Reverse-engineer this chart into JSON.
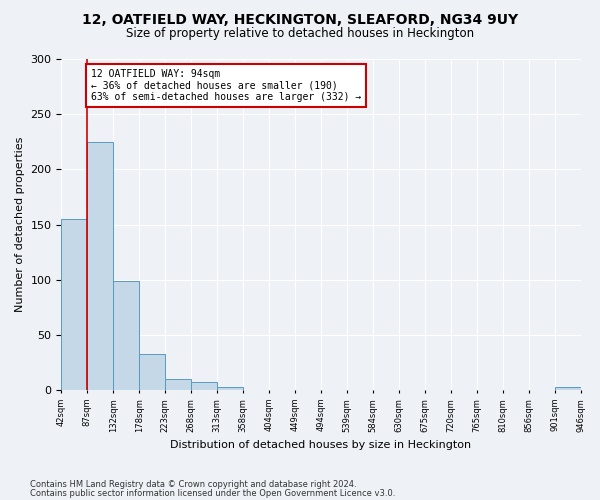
{
  "title": "12, OATFIELD WAY, HECKINGTON, SLEAFORD, NG34 9UY",
  "subtitle": "Size of property relative to detached houses in Heckington",
  "xlabel": "Distribution of detached houses by size in Heckington",
  "ylabel": "Number of detached properties",
  "bar_values": [
    155,
    225,
    99,
    33,
    10,
    7,
    3,
    0,
    0,
    0,
    0,
    0,
    0,
    0,
    0,
    0,
    0,
    0,
    0,
    3
  ],
  "bin_labels": [
    "42sqm",
    "87sqm",
    "132sqm",
    "178sqm",
    "223sqm",
    "268sqm",
    "313sqm",
    "358sqm",
    "404sqm",
    "449sqm",
    "494sqm",
    "539sqm",
    "584sqm",
    "630sqm",
    "675sqm",
    "720sqm",
    "765sqm",
    "810sqm",
    "856sqm",
    "901sqm",
    "946sqm"
  ],
  "bar_color": "#c5d8e8",
  "bar_edge_color": "#5a9abf",
  "marker_color": "#cc0000",
  "annotation_line1": "12 OATFIELD WAY: 94sqm",
  "annotation_line2": "← 36% of detached houses are smaller (190)",
  "annotation_line3": "63% of semi-detached houses are larger (332) →",
  "annotation_box_color": "#ffffff",
  "annotation_box_edge": "#cc0000",
  "ylim": [
    0,
    300
  ],
  "yticks": [
    0,
    50,
    100,
    150,
    200,
    250,
    300
  ],
  "footer1": "Contains HM Land Registry data © Crown copyright and database right 2024.",
  "footer2": "Contains public sector information licensed under the Open Government Licence v3.0.",
  "bg_color": "#eef2f7",
  "plot_bg_color": "#eef2f7"
}
